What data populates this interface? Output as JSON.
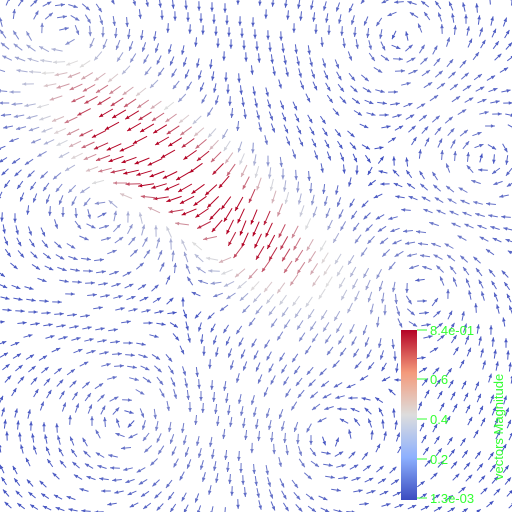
{
  "scene": {
    "background": "#ffffff",
    "glyph_type": "arrow-glyphs",
    "color_map": [
      "#3b4cc0",
      "#dddddd",
      "#b40426"
    ]
  },
  "scalar_bar": {
    "title": "vectors Magnitude",
    "max_label": "8.4e-01",
    "min_label": "1.3e-03",
    "tick_labels": [
      "0.6",
      "0.4",
      "0.2"
    ],
    "range": [
      0.0013,
      0.84
    ],
    "text_color": "#33ff33"
  }
}
